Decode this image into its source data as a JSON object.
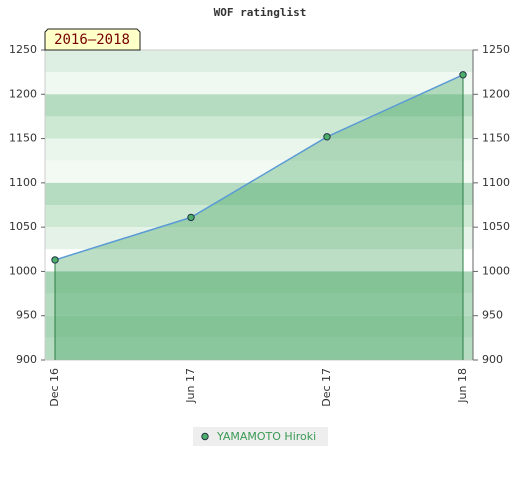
{
  "chart_data": {
    "type": "area",
    "title": "WOF ratinglist",
    "annotation": "2016–2018",
    "categories": [
      "Dec 16",
      "Jun 17",
      "Dec 17",
      "Jun 18"
    ],
    "series": [
      {
        "name": "YAMAMOTO Hiroki",
        "color": "#5b9bd5",
        "marker_color": "#4caf6a",
        "values": [
          1013,
          1061,
          1152,
          1222
        ]
      }
    ],
    "ylim": [
      900,
      1250
    ],
    "yticks": [
      900,
      950,
      1000,
      1050,
      1100,
      1150,
      1200,
      1250
    ],
    "legend": "bottom"
  }
}
